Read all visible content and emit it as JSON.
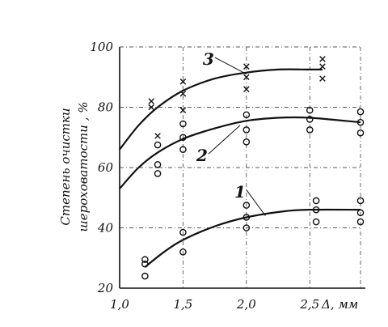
{
  "chart_data": {
    "type": "scatter",
    "title": "",
    "xlabel": "Δ, мм",
    "ylabel_line1": "Степень очистки",
    "ylabel_line2": "шероховатости , %",
    "xlim": [
      1.0,
      2.9
    ],
    "ylim": [
      20,
      100
    ],
    "grid": true,
    "x_ticks": [
      {
        "value": 1.0,
        "label": "1,0"
      },
      {
        "value": 1.5,
        "label": "1,5"
      },
      {
        "value": 2.0,
        "label": "2,0"
      },
      {
        "value": 2.5,
        "label": "2,5"
      }
    ],
    "y_ticks": [
      {
        "value": 20,
        "label": "20"
      },
      {
        "value": 40,
        "label": "40"
      },
      {
        "value": 60,
        "label": "60"
      },
      {
        "value": 80,
        "label": "80"
      },
      {
        "value": 100,
        "label": "100"
      }
    ],
    "grid_x": [
      1.5,
      2.0,
      2.5,
      2.9
    ],
    "grid_y": [
      40,
      60,
      80,
      100
    ],
    "series": [
      {
        "curve_label": "1",
        "marker": "circle",
        "label_at": [
          1.95,
          52
        ],
        "label_anchor": [
          2.15,
          44
        ],
        "curve": [
          [
            1.2,
            27
          ],
          [
            1.35,
            32
          ],
          [
            1.5,
            36
          ],
          [
            1.75,
            40.5
          ],
          [
            2.0,
            43.5
          ],
          [
            2.3,
            45.5
          ],
          [
            2.5,
            46
          ],
          [
            2.9,
            46
          ]
        ],
        "points": [
          [
            1.2,
            29.5
          ],
          [
            1.2,
            28
          ],
          [
            1.2,
            24
          ],
          [
            1.5,
            38.5
          ],
          [
            1.5,
            32
          ],
          [
            2.0,
            47.5
          ],
          [
            2.0,
            43.5
          ],
          [
            2.0,
            40
          ],
          [
            2.55,
            49
          ],
          [
            2.55,
            46
          ],
          [
            2.55,
            42
          ],
          [
            2.9,
            49
          ],
          [
            2.9,
            45
          ],
          [
            2.9,
            42
          ]
        ]
      },
      {
        "curve_label": "2",
        "marker": "circle",
        "label_at": [
          1.65,
          64
        ],
        "label_anchor": [
          1.95,
          74
        ],
        "curve": [
          [
            1.0,
            53
          ],
          [
            1.15,
            60
          ],
          [
            1.3,
            65
          ],
          [
            1.5,
            69.5
          ],
          [
            1.75,
            73
          ],
          [
            2.0,
            75.5
          ],
          [
            2.25,
            76.5
          ],
          [
            2.5,
            76.5
          ],
          [
            2.9,
            75
          ]
        ],
        "points": [
          [
            1.3,
            67.5
          ],
          [
            1.3,
            61
          ],
          [
            1.3,
            58
          ],
          [
            1.5,
            74.5
          ],
          [
            1.5,
            70
          ],
          [
            1.5,
            66
          ],
          [
            2.0,
            77.5
          ],
          [
            2.0,
            72.5
          ],
          [
            2.0,
            68.5
          ],
          [
            2.5,
            79
          ],
          [
            2.5,
            76
          ],
          [
            2.5,
            72.5
          ],
          [
            2.9,
            78.5
          ],
          [
            2.9,
            75
          ],
          [
            2.9,
            71.5
          ]
        ]
      },
      {
        "curve_label": "3",
        "marker": "cross",
        "label_at": [
          1.7,
          96
        ],
        "label_anchor": [
          2.0,
          91
        ],
        "curve": [
          [
            1.0,
            66
          ],
          [
            1.15,
            74
          ],
          [
            1.3,
            80
          ],
          [
            1.5,
            85.5
          ],
          [
            1.75,
            89.5
          ],
          [
            2.0,
            91.5
          ],
          [
            2.25,
            92.5
          ],
          [
            2.5,
            92.5
          ],
          [
            2.6,
            92.5
          ]
        ],
        "points": [
          [
            1.25,
            82
          ],
          [
            1.25,
            80
          ],
          [
            1.3,
            70.5
          ],
          [
            1.5,
            88.5
          ],
          [
            1.5,
            84.5
          ],
          [
            1.5,
            79
          ],
          [
            2.0,
            93.5
          ],
          [
            2.0,
            90
          ],
          [
            2.0,
            86
          ],
          [
            2.6,
            96
          ],
          [
            2.6,
            93.5
          ],
          [
            2.6,
            89.5
          ]
        ]
      }
    ]
  }
}
